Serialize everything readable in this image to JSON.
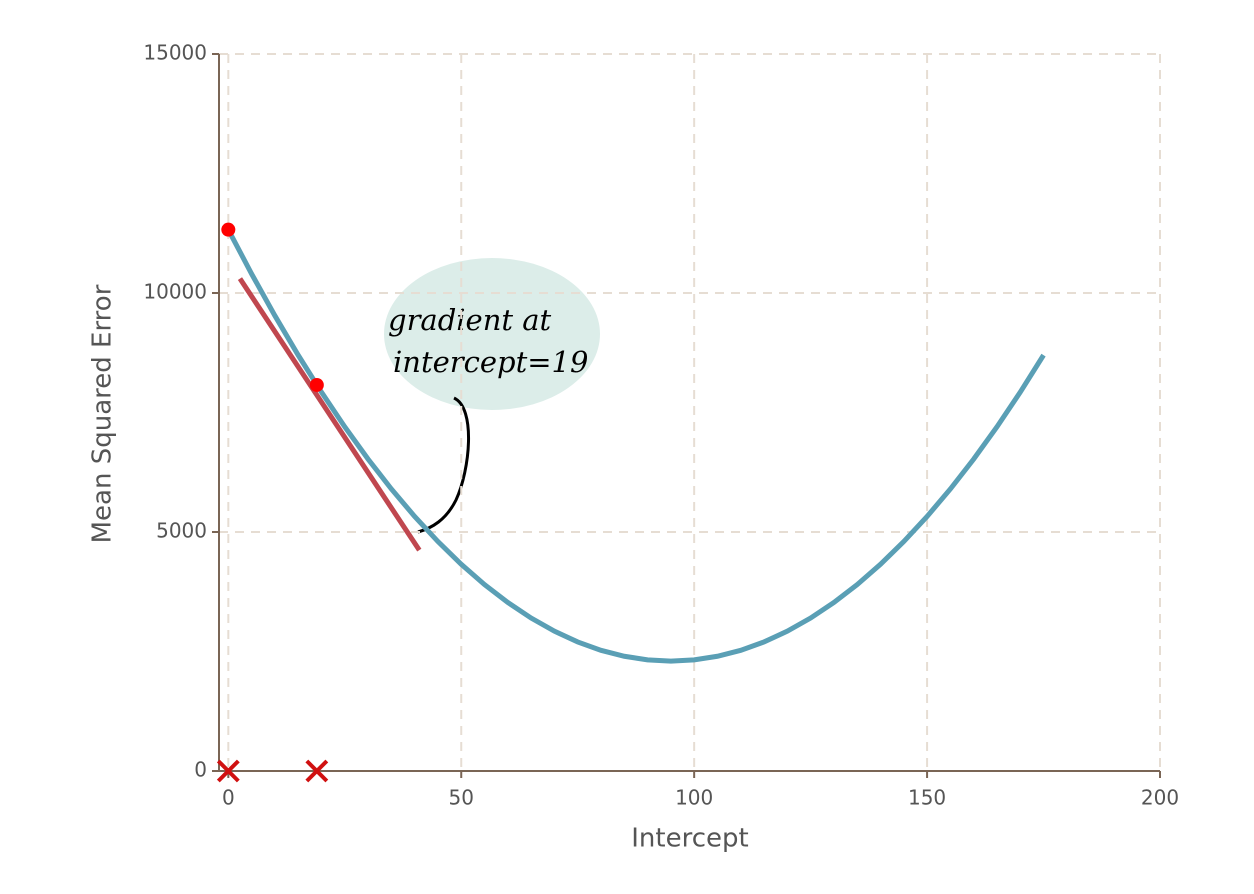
{
  "chart_data": {
    "type": "line",
    "xlabel": "Intercept",
    "ylabel": "Mean Squared Error",
    "xlim": [
      -2,
      200
    ],
    "ylim": [
      0,
      15000
    ],
    "xticks": [
      0,
      50,
      100,
      150,
      200
    ],
    "yticks": [
      0,
      5000,
      10000,
      15000
    ],
    "grid": true,
    "x": [
      0,
      5,
      10,
      15,
      20,
      25,
      30,
      35,
      40,
      45,
      50,
      55,
      60,
      65,
      70,
      75,
      80,
      85,
      90,
      95,
      100,
      105,
      110,
      115,
      120,
      125,
      130,
      135,
      140,
      145,
      150,
      155,
      160,
      165,
      170,
      175
    ],
    "series": [
      {
        "color": "#5a9fb5",
        "values": [
          11325,
          10400,
          9525,
          8700,
          7925,
          7200,
          6525,
          5900,
          5325,
          4800,
          4325,
          3900,
          3525,
          3200,
          2925,
          2700,
          2525,
          2400,
          2325,
          2300,
          2325,
          2400,
          2525,
          2700,
          2925,
          3200,
          3525,
          3900,
          4325,
          4800,
          5325,
          5900,
          6525,
          7200,
          7925,
          8700
        ]
      }
    ],
    "tangent": {
      "color": "#c0474f",
      "x": [
        2.5,
        41
      ],
      "y": [
        10300,
        4620
      ]
    },
    "points": {
      "color": "#ff0000",
      "x": [
        0,
        19
      ],
      "y": [
        11325,
        8076
      ]
    },
    "markers": {
      "color": "#d01010",
      "x": [
        0,
        19
      ],
      "y": [
        0,
        0
      ]
    },
    "annotation": {
      "lines": [
        "gradient at",
        "intercept=19"
      ]
    }
  }
}
